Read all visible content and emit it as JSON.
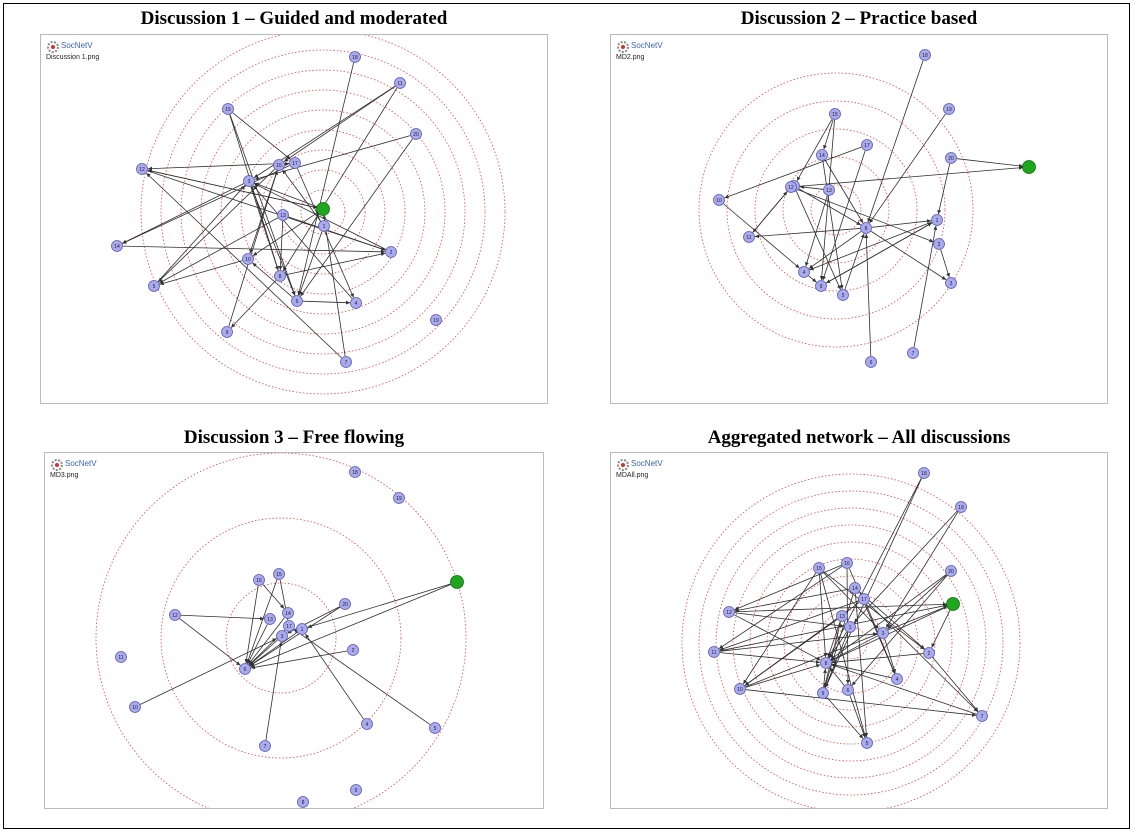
{
  "figure": {
    "panels": [
      {
        "title": "Discussion 1 – Guided and moderated",
        "app_label": "SocNetV",
        "filename": "Discussion 1.png",
        "rings": 9,
        "nodes": [
          {
            "id": "n1",
            "label": "18"
          },
          {
            "id": "n2",
            "label": "11"
          },
          {
            "id": "n3",
            "label": "15"
          },
          {
            "id": "n4",
            "label": "20"
          },
          {
            "id": "n5",
            "label": "16"
          },
          {
            "id": "n6",
            "label": "17"
          },
          {
            "id": "n7",
            "label": "3"
          },
          {
            "id": "n8",
            "label": "13"
          },
          {
            "id": "n9",
            "label": "",
            "highlight": true
          },
          {
            "id": "n10",
            "label": "1"
          },
          {
            "id": "n11",
            "label": "12"
          },
          {
            "id": "n12",
            "label": "2"
          },
          {
            "id": "n13",
            "label": "10"
          },
          {
            "id": "n14",
            "label": "8"
          },
          {
            "id": "n15",
            "label": "6"
          },
          {
            "id": "n16",
            "label": "14"
          },
          {
            "id": "n17",
            "label": "5"
          },
          {
            "id": "n18",
            "label": "4"
          },
          {
            "id": "n19",
            "label": "9"
          },
          {
            "id": "n20",
            "label": "7"
          },
          {
            "id": "n21",
            "label": "19"
          }
        ],
        "edges": [
          [
            "n1",
            "n15"
          ],
          [
            "n2",
            "n7"
          ],
          [
            "n2",
            "n14"
          ],
          [
            "n3",
            "n14"
          ],
          [
            "n3",
            "n6"
          ],
          [
            "n4",
            "n7"
          ],
          [
            "n5",
            "n13"
          ],
          [
            "n5",
            "n6"
          ],
          [
            "n6",
            "n16"
          ],
          [
            "n6",
            "n11"
          ],
          [
            "n7",
            "n16"
          ],
          [
            "n7",
            "n14"
          ],
          [
            "n8",
            "n17"
          ],
          [
            "n8",
            "n12"
          ],
          [
            "n9",
            "n7"
          ],
          [
            "n9",
            "n13"
          ],
          [
            "n9",
            "n11"
          ],
          [
            "n10",
            "n15"
          ],
          [
            "n11",
            "n12"
          ],
          [
            "n11",
            "n9"
          ],
          [
            "n12",
            "n7"
          ],
          [
            "n13",
            "n17"
          ],
          [
            "n14",
            "n12"
          ],
          [
            "n14",
            "n19"
          ],
          [
            "n15",
            "n18"
          ],
          [
            "n15",
            "n13"
          ],
          [
            "n16",
            "n12"
          ],
          [
            "n17",
            "n7"
          ],
          [
            "n18",
            "n7"
          ],
          [
            "n19",
            "n5"
          ],
          [
            "n20",
            "n9"
          ],
          [
            "n20",
            "n11"
          ],
          [
            "n7",
            "n15"
          ],
          [
            "n5",
            "n17"
          ],
          [
            "n6",
            "n18"
          ],
          [
            "n3",
            "n15"
          ],
          [
            "n8",
            "n14"
          ],
          [
            "n10",
            "n5"
          ],
          [
            "n4",
            "n15"
          ],
          [
            "n2",
            "n5"
          ]
        ]
      },
      {
        "title": "Discussion 2 – Practice based",
        "app_label": "SocNetV",
        "filename": "MD2.png",
        "rings": 5,
        "nodes": [
          {
            "id": "n1",
            "label": "18"
          },
          {
            "id": "n2",
            "label": "19"
          },
          {
            "id": "n3",
            "label": "15"
          },
          {
            "id": "n4",
            "label": "17"
          },
          {
            "id": "n5",
            "label": "20"
          },
          {
            "id": "n6",
            "label": "",
            "highlight": true
          },
          {
            "id": "n7",
            "label": "14"
          },
          {
            "id": "n8",
            "label": "13"
          },
          {
            "id": "n9",
            "label": "16"
          },
          {
            "id": "n10",
            "label": "12"
          },
          {
            "id": "n11",
            "label": "8"
          },
          {
            "id": "n12",
            "label": "1"
          },
          {
            "id": "n13",
            "label": "11"
          },
          {
            "id": "n14",
            "label": "2"
          },
          {
            "id": "n15",
            "label": "10"
          },
          {
            "id": "n16",
            "label": "4"
          },
          {
            "id": "n17",
            "label": "5"
          },
          {
            "id": "n18",
            "label": "9"
          },
          {
            "id": "n19",
            "label": "3"
          },
          {
            "id": "n20",
            "label": "6"
          },
          {
            "id": "n21",
            "label": "7"
          }
        ],
        "edges": [
          [
            "n1",
            "n11"
          ],
          [
            "n2",
            "n11"
          ],
          [
            "n3",
            "n7"
          ],
          [
            "n3",
            "n18"
          ],
          [
            "n4",
            "n15"
          ],
          [
            "n5",
            "n6"
          ],
          [
            "n5",
            "n12"
          ],
          [
            "n7",
            "n11"
          ],
          [
            "n8",
            "n16"
          ],
          [
            "n9",
            "n17"
          ],
          [
            "n9",
            "n11"
          ],
          [
            "n10",
            "n13"
          ],
          [
            "n10",
            "n14"
          ],
          [
            "n11",
            "n12"
          ],
          [
            "n11",
            "n13"
          ],
          [
            "n11",
            "n16"
          ],
          [
            "n12",
            "n18"
          ],
          [
            "n13",
            "n10"
          ],
          [
            "n14",
            "n19"
          ],
          [
            "n15",
            "n16"
          ],
          [
            "n16",
            "n18"
          ],
          [
            "n17",
            "n11"
          ],
          [
            "n18",
            "n12"
          ],
          [
            "n20",
            "n11"
          ],
          [
            "n21",
            "n12"
          ],
          [
            "n10",
            "n6"
          ],
          [
            "n3",
            "n9"
          ],
          [
            "n4",
            "n18"
          ],
          [
            "n7",
            "n17"
          ],
          [
            "n8",
            "n9"
          ],
          [
            "n12",
            "n16"
          ],
          [
            "n11",
            "n19"
          ]
        ]
      },
      {
        "title": "Discussion 3 –  Free flowing",
        "app_label": "SocNetV",
        "filename": "MD3.png",
        "rings": 3,
        "nodes": [
          {
            "id": "n1",
            "label": "18"
          },
          {
            "id": "n2",
            "label": "19"
          },
          {
            "id": "n3",
            "label": "",
            "highlight": true
          },
          {
            "id": "n4",
            "label": "20"
          },
          {
            "id": "n5",
            "label": "16"
          },
          {
            "id": "n6",
            "label": "15"
          },
          {
            "id": "n7",
            "label": "14"
          },
          {
            "id": "n8",
            "label": "12"
          },
          {
            "id": "n9",
            "label": "17"
          },
          {
            "id": "n10",
            "label": "1"
          },
          {
            "id": "n11",
            "label": "3"
          },
          {
            "id": "n12",
            "label": "13"
          },
          {
            "id": "n13",
            "label": "2"
          },
          {
            "id": "n14",
            "label": "11"
          },
          {
            "id": "n15",
            "label": "6"
          },
          {
            "id": "n16",
            "label": "10"
          },
          {
            "id": "n17",
            "label": "4"
          },
          {
            "id": "n18",
            "label": "5"
          },
          {
            "id": "n19",
            "label": "7"
          },
          {
            "id": "n20",
            "label": "9"
          },
          {
            "id": "n21",
            "label": "8"
          }
        ],
        "edges": [
          [
            "n3",
            "n10"
          ],
          [
            "n3",
            "n15"
          ],
          [
            "n4",
            "n15"
          ],
          [
            "n5",
            "n15"
          ],
          [
            "n6",
            "n15"
          ],
          [
            "n7",
            "n15"
          ],
          [
            "n8",
            "n15"
          ],
          [
            "n9",
            "n15"
          ],
          [
            "n10",
            "n15"
          ],
          [
            "n11",
            "n15"
          ],
          [
            "n12",
            "n15"
          ],
          [
            "n13",
            "n15"
          ],
          [
            "n16",
            "n11"
          ],
          [
            "n17",
            "n10"
          ],
          [
            "n18",
            "n9"
          ],
          [
            "n19",
            "n11"
          ],
          [
            "n5",
            "n7"
          ],
          [
            "n6",
            "n9"
          ],
          [
            "n4",
            "n11"
          ],
          [
            "n8",
            "n12"
          ]
        ]
      },
      {
        "title": "Aggregated network – All discussions",
        "app_label": "SocNetV",
        "filename": "MDAll.png",
        "rings": 10,
        "nodes": [
          {
            "id": "n1",
            "label": "18"
          },
          {
            "id": "n2",
            "label": "19"
          },
          {
            "id": "n3",
            "label": "16"
          },
          {
            "id": "n4",
            "label": "20"
          },
          {
            "id": "n5",
            "label": "",
            "highlight": true
          },
          {
            "id": "n6",
            "label": "15"
          },
          {
            "id": "n7",
            "label": "14"
          },
          {
            "id": "n8",
            "label": "17"
          },
          {
            "id": "n9",
            "label": "13"
          },
          {
            "id": "n10",
            "label": "12"
          },
          {
            "id": "n11",
            "label": "1"
          },
          {
            "id": "n12",
            "label": "3"
          },
          {
            "id": "n13",
            "label": "11"
          },
          {
            "id": "n14",
            "label": "8"
          },
          {
            "id": "n15",
            "label": "2"
          },
          {
            "id": "n16",
            "label": "10"
          },
          {
            "id": "n17",
            "label": "6"
          },
          {
            "id": "n18",
            "label": "9"
          },
          {
            "id": "n19",
            "label": "4"
          },
          {
            "id": "n20",
            "label": "7"
          },
          {
            "id": "n21",
            "label": "5"
          }
        ],
        "edges": [
          [
            "n1",
            "n14"
          ],
          [
            "n2",
            "n11"
          ],
          [
            "n3",
            "n17"
          ],
          [
            "n4",
            "n14"
          ],
          [
            "n5",
            "n14"
          ],
          [
            "n6",
            "n21"
          ],
          [
            "n6",
            "n14"
          ],
          [
            "n7",
            "n18"
          ],
          [
            "n8",
            "n16"
          ],
          [
            "n9",
            "n14"
          ],
          [
            "n10",
            "n14"
          ],
          [
            "n11",
            "n14"
          ],
          [
            "n12",
            "n14"
          ],
          [
            "n13",
            "n14"
          ],
          [
            "n15",
            "n14"
          ],
          [
            "n16",
            "n14"
          ],
          [
            "n17",
            "n14"
          ],
          [
            "n18",
            "n14"
          ],
          [
            "n19",
            "n14"
          ],
          [
            "n20",
            "n14"
          ],
          [
            "n10",
            "n5"
          ],
          [
            "n13",
            "n5"
          ],
          [
            "n16",
            "n5"
          ],
          [
            "n6",
            "n12"
          ],
          [
            "n7",
            "n21"
          ],
          [
            "n8",
            "n20"
          ],
          [
            "n9",
            "n18"
          ],
          [
            "n3",
            "n19"
          ],
          [
            "n4",
            "n17"
          ],
          [
            "n2",
            "n12"
          ],
          [
            "n1",
            "n18"
          ],
          [
            "n6",
            "n15"
          ],
          [
            "n7",
            "n15"
          ],
          [
            "n10",
            "n11"
          ],
          [
            "n13",
            "n12"
          ],
          [
            "n16",
            "n20"
          ],
          [
            "n17",
            "n21"
          ],
          [
            "n8",
            "n13"
          ],
          [
            "n9",
            "n16"
          ],
          [
            "n3",
            "n10"
          ],
          [
            "n6",
            "n16"
          ],
          [
            "n7",
            "n10"
          ],
          [
            "n12",
            "n19"
          ],
          [
            "n11",
            "n18"
          ],
          [
            "n5",
            "n15"
          ],
          [
            "n4",
            "n12"
          ],
          [
            "n15",
            "n20"
          ],
          [
            "n18",
            "n21"
          ],
          [
            "n8",
            "n19"
          ],
          [
            "n3",
            "n13"
          ]
        ]
      }
    ]
  }
}
